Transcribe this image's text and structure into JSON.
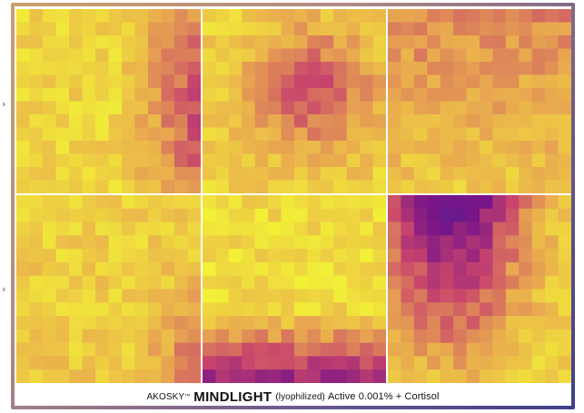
{
  "caption": {
    "brand": "AKOSKY",
    "trademark": "™",
    "product": "MINDLIGHT",
    "form": "(lyophilized)",
    "detail": "Active 0.001% + Cortisol"
  },
  "side_markers": [
    {
      "glyph": "›"
    },
    {
      "glyph": "›"
    }
  ],
  "colors": {
    "low": "#f2f037",
    "mid": "#e9a94f",
    "high": "#c8446c",
    "peak": "#7a1588",
    "extreme": "#3c2c9c",
    "frame_gradient": [
      "#c9a06a",
      "#b08a84",
      "#6d5a8c",
      "#3f3f8a"
    ]
  },
  "panels": [
    {
      "id": "top-left"
    },
    {
      "id": "top-middle"
    },
    {
      "id": "top-right"
    },
    {
      "id": "bottom-left"
    },
    {
      "id": "bottom-middle"
    },
    {
      "id": "bottom-right"
    }
  ]
}
